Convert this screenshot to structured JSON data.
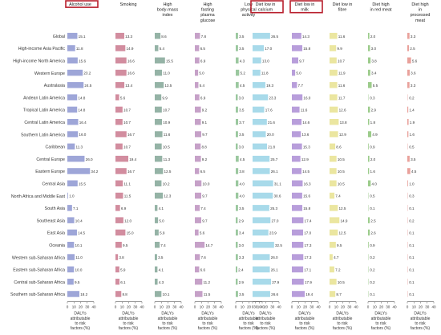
{
  "chart_data": {
    "type": "bar",
    "orientation": "horizontal",
    "grid": false,
    "legend": "none",
    "categories": [
      "Global",
      "High-income Asia Pacific",
      "High-income North America",
      "Western Europe",
      "Australasia",
      "Andean Latin America",
      "Tropical Latin America",
      "Central Latin America",
      "Southern Latin America",
      "Caribbean",
      "Central Europe",
      "Eastern Europe",
      "Central Asia",
      "North Africa and Middle East",
      "South Asia",
      "Southeast Asia",
      "East Asia",
      "Oceania",
      "Western sub-Saharan Africa",
      "Eastern sub-Saharan Africa",
      "Central sub-Saharan Africa",
      "Southern sub-Saharan Africa"
    ],
    "xlim": [
      0,
      40
    ],
    "xticks": [
      0,
      10,
      20,
      30,
      40
    ],
    "axis_label_lines": [
      "DALYs",
      "attributable",
      "to risk",
      "factors (%)"
    ],
    "highlighted_panels": [
      0,
      5,
      6
    ],
    "series": [
      {
        "name": "Alcohol use",
        "color": "#9ea6d8",
        "values": [
          15.1,
          11.8,
          15.6,
          23.2,
          24.5,
          14.8,
          14.8,
          16.4,
          16.0,
          11.3,
          26.0,
          34.2,
          15.5,
          1.0,
          7.1,
          10.4,
          14.5,
          10.1,
          11.0,
          10.0,
          9.5,
          18.2
        ]
      },
      {
        "name": "Smoking",
        "color": "#d28d9f",
        "values": [
          13.3,
          14.9,
          16.6,
          16.6,
          13.4,
          5.6,
          10.7,
          10.7,
          16.7,
          10.7,
          19.4,
          16.7,
          11.1,
          11.5,
          6.9,
          12.0,
          15.0,
          9.5,
          3.8,
          5.9,
          6.1,
          8.8
        ]
      },
      {
        "name": "High body-mass index",
        "color": "#95b3a6",
        "values": [
          8.6,
          5.4,
          15.5,
          11.0,
          13.5,
          9.9,
          10.7,
          10.9,
          11.6,
          10.5,
          11.3,
          12.5,
          10.2,
          12.3,
          4.1,
          5.0,
          5.9,
          7.4,
          3.5,
          4.1,
          4.3,
          10.1
        ]
      },
      {
        "name": "High fasting plasma glucose",
        "color": "#c6a1c8",
        "values": [
          7.8,
          6.5,
          6.9,
          5.0,
          5.4,
          6.9,
          9.2,
          9.1,
          9.7,
          8.8,
          9.2,
          6.5,
          10.0,
          9.7,
          7.4,
          9.7,
          5.6,
          14.7,
          7.6,
          6.6,
          11.2,
          11.5
        ]
      },
      {
        "name": "Low physical activity",
        "color": "#9bc89f",
        "values": [
          3.5,
          3.5,
          4.3,
          5.2,
          4.5,
          3.0,
          3.5,
          3.7,
          3.5,
          3.0,
          4.5,
          3.8,
          4.0,
          4.0,
          3.5,
          2.9,
          3.4,
          3.0,
          3.3,
          2.4,
          2.9,
          3.5
        ]
      },
      {
        "name": "Diet low in calcium",
        "color": "#a8daea",
        "values": [
          26.5,
          17.0,
          13.0,
          11.8,
          19.3,
          23.3,
          17.6,
          21.6,
          20.0,
          21.8,
          25.7,
          26.1,
          31.1,
          30.6,
          25.3,
          27.0,
          23.9,
          32.5,
          26.0,
          26.1,
          27.9,
          26.6
        ]
      },
      {
        "name": "Diet low in milk",
        "color": "#b89edb",
        "values": [
          14.3,
          15.8,
          9.7,
          5.0,
          7.7,
          16.0,
          11.6,
          14.6,
          13.6,
          15.3,
          12.9,
          14.5,
          16.3,
          15.6,
          15.8,
          17.4,
          17.0,
          17.3,
          17.3,
          17.1,
          17.9,
          19.4
        ]
      },
      {
        "name": "Diet low in fibre",
        "color": "#ebe6a0",
        "values": [
          11.6,
          9.9,
          10.7,
          11.9,
          11.6,
          11.7,
          12.6,
          13.8,
          12.9,
          8.6,
          10.5,
          10.5,
          10.5,
          7.4,
          12.5,
          14.9,
          12.5,
          9.5,
          4.7,
          7.2,
          10.5,
          8.7
        ]
      },
      {
        "name": "Diet high in red meat",
        "color": "#9ccc8b",
        "values": [
          2.0,
          3.0,
          3.8,
          3.4,
          5.5,
          0.3,
          2.9,
          1.8,
          4.9,
          0.9,
          2.0,
          1.6,
          4.0,
          0.5,
          0.1,
          2.5,
          2.6,
          0.9,
          0.2,
          0.2,
          0.2,
          0.1
        ]
      },
      {
        "name": "Diet high in processed meat",
        "color": "#e9a19b",
        "values": [
          3.3,
          2.5,
          5.6,
          3.6,
          3.3,
          0.2,
          1.4,
          1.9,
          1.6,
          0.5,
          3.5,
          4.5,
          1.0,
          0.3,
          0.1,
          0.2,
          0.1,
          0.1,
          0.1,
          0.1,
          0.1,
          0.1
        ]
      }
    ]
  }
}
